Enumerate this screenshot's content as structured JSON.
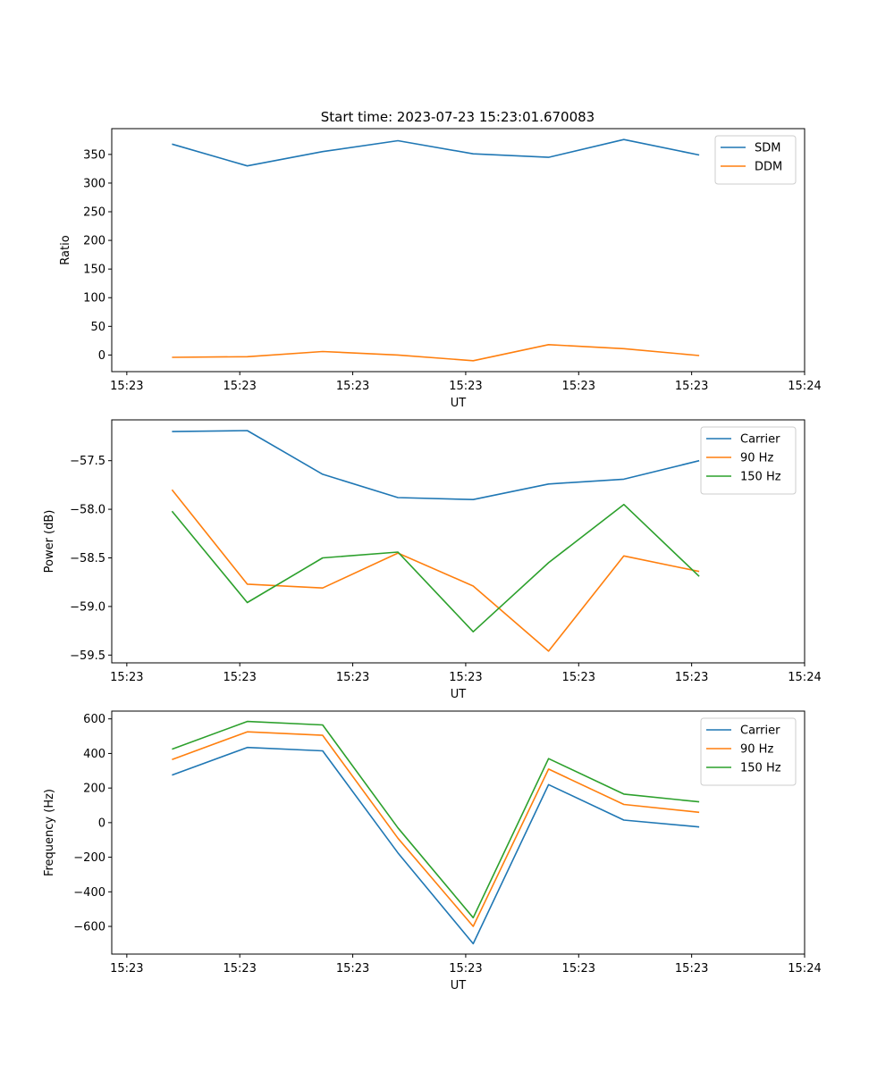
{
  "figure_title": "Start time: 2023-07-23 15:23:01.670083",
  "colors": {
    "blue": "#1f77b4",
    "orange": "#ff7f0e",
    "green": "#2ca02c"
  },
  "chart_data": [
    {
      "type": "line",
      "title": "Start time: 2023-07-23 15:23:01.670083",
      "xlabel": "UT",
      "ylabel": "Ratio",
      "x": [
        1,
        2,
        3,
        4,
        5,
        6,
        7,
        8
      ],
      "xlim": [
        0.2,
        9.4
      ],
      "ylim": [
        -29.0,
        395.0
      ],
      "yticks": [
        0,
        50,
        100,
        150,
        200,
        250,
        300,
        350
      ],
      "xtick_values": [
        0.4,
        1.9,
        3.4,
        4.9,
        6.4,
        7.9,
        9.4
      ],
      "xtick_labels": [
        "15:23",
        "15:23",
        "15:23",
        "15:23",
        "15:23",
        "15:23",
        "15:24"
      ],
      "legend": "upper right",
      "series": [
        {
          "name": "SDM",
          "color": "#1f77b4",
          "values": [
            368,
            330,
            355,
            374,
            351,
            345,
            376,
            349
          ]
        },
        {
          "name": "DDM",
          "color": "#ff7f0e",
          "values": [
            -4,
            -3,
            6,
            0,
            -10,
            18,
            11,
            -1
          ]
        }
      ]
    },
    {
      "type": "line",
      "title": "",
      "xlabel": "UT",
      "ylabel": "Power (dB)",
      "x": [
        1,
        2,
        3,
        4,
        5,
        6,
        7,
        8
      ],
      "xlim": [
        0.2,
        9.4
      ],
      "ylim": [
        -59.58,
        -57.08
      ],
      "yticks": [
        -59.5,
        -59.0,
        -58.5,
        -58.0,
        -57.5
      ],
      "ytick_labels": [
        "−59.5",
        "−59.0",
        "−58.5",
        "−58.0",
        "−57.5"
      ],
      "xtick_values": [
        0.4,
        1.9,
        3.4,
        4.9,
        6.4,
        7.9,
        9.4
      ],
      "xtick_labels": [
        "15:23",
        "15:23",
        "15:23",
        "15:23",
        "15:23",
        "15:23",
        "15:24"
      ],
      "legend": "upper right",
      "series": [
        {
          "name": "Carrier",
          "color": "#1f77b4",
          "values": [
            -57.2,
            -57.19,
            -57.64,
            -57.88,
            -57.9,
            -57.74,
            -57.69,
            -57.5
          ]
        },
        {
          "name": "90 Hz",
          "color": "#ff7f0e",
          "values": [
            -57.8,
            -58.77,
            -58.81,
            -58.45,
            -58.79,
            -59.46,
            -58.48,
            -58.64
          ]
        },
        {
          "name": "150 Hz",
          "color": "#2ca02c",
          "values": [
            -58.02,
            -58.96,
            -58.5,
            -58.44,
            -59.26,
            -58.55,
            -57.95,
            -58.69
          ]
        }
      ]
    },
    {
      "type": "line",
      "title": "",
      "xlabel": "UT",
      "ylabel": "Frequency (Hz)",
      "x": [
        1,
        2,
        3,
        4,
        5,
        6,
        7,
        8
      ],
      "xlim": [
        0.2,
        9.4
      ],
      "ylim": [
        -760,
        645
      ],
      "yticks": [
        -600,
        -400,
        -200,
        0,
        200,
        400,
        600
      ],
      "ytick_labels": [
        "−600",
        "−400",
        "−200",
        "0",
        "200",
        "400",
        "600"
      ],
      "xtick_values": [
        0.4,
        1.9,
        3.4,
        4.9,
        6.4,
        7.9,
        9.4
      ],
      "xtick_labels": [
        "15:23",
        "15:23",
        "15:23",
        "15:23",
        "15:23",
        "15:23",
        "15:24"
      ],
      "legend": "upper right",
      "series": [
        {
          "name": "Carrier",
          "color": "#1f77b4",
          "values": [
            275,
            435,
            415,
            -175,
            -700,
            220,
            15,
            -25
          ]
        },
        {
          "name": "90 Hz",
          "color": "#ff7f0e",
          "values": [
            365,
            525,
            505,
            -90,
            -600,
            310,
            105,
            60
          ]
        },
        {
          "name": "150 Hz",
          "color": "#2ca02c",
          "values": [
            425,
            585,
            565,
            -30,
            -550,
            370,
            165,
            120
          ]
        }
      ]
    }
  ]
}
